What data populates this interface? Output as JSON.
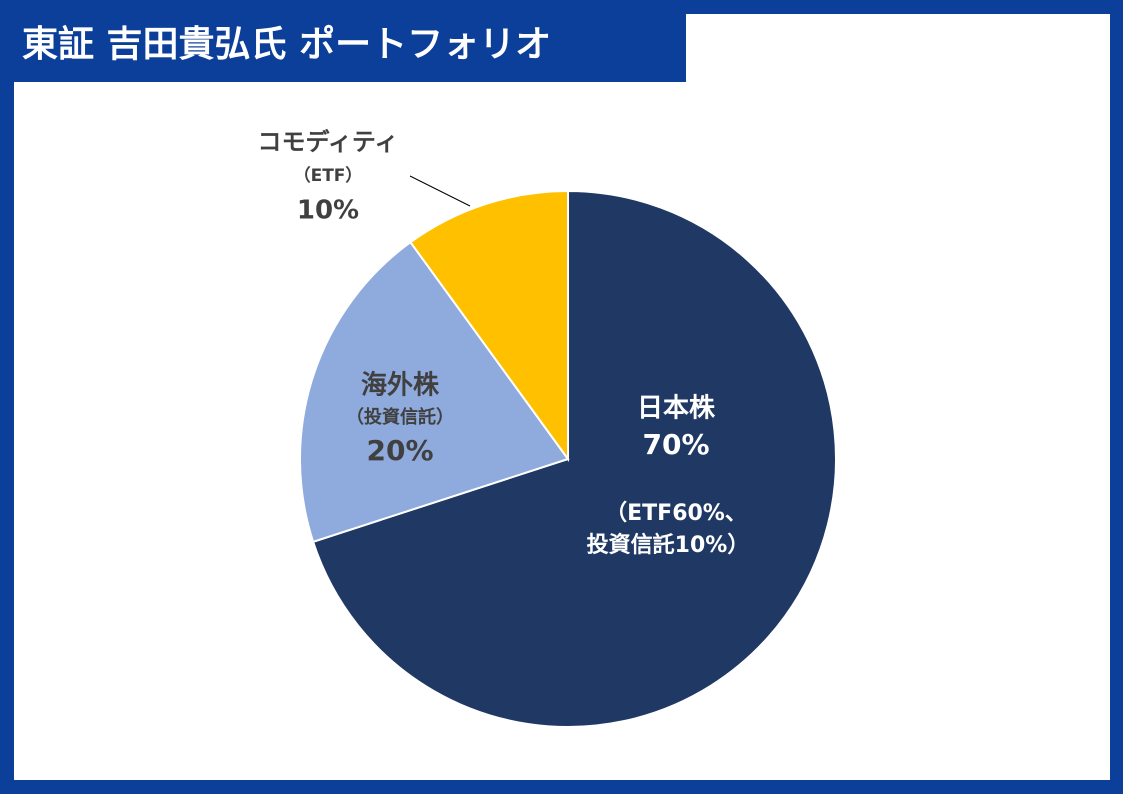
{
  "chart_data": {
    "type": "pie",
    "title": "東証 吉田貴弘氏 ポートフォリオ",
    "categories": [
      "日本株",
      "海外株",
      "コモディティ"
    ],
    "sublabels": [
      [
        "（ETF60%、",
        "投資信託10%）"
      ],
      [
        "（投資信託）"
      ],
      [
        "（ETF）"
      ]
    ],
    "values": [
      70,
      20,
      10
    ],
    "value_labels": [
      "70%",
      "20%",
      "10%"
    ],
    "colors": [
      "#203864",
      "#8faadc",
      "#ffc000"
    ]
  }
}
